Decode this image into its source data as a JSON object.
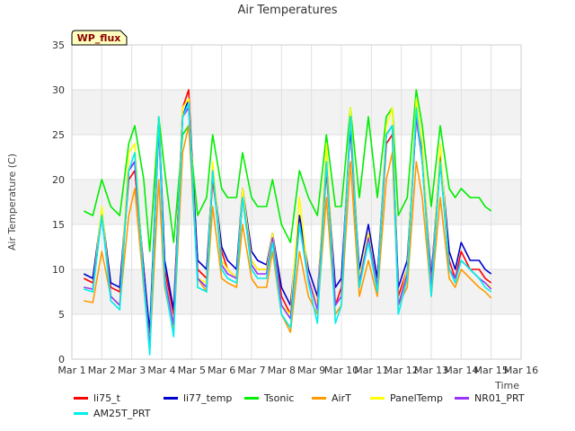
{
  "chart_data": {
    "type": "line",
    "title": "Air Temperatures",
    "xlabel": "Time",
    "ylabel": "Air Temperature (C)",
    "badge": "WP_flux",
    "ylim": [
      0,
      35
    ],
    "yticks": [
      0,
      5,
      10,
      15,
      20,
      25,
      30,
      35
    ],
    "xlim": [
      1,
      16
    ],
    "xticks": [
      "Mar 1",
      "Mar 2",
      "Mar 3",
      "Mar 4",
      "Mar 5",
      "Mar 6",
      "Mar 7",
      "Mar 8",
      "Mar 9",
      "Mar 10",
      "Mar 11",
      "Mar 12",
      "Mar 13",
      "Mar 14",
      "Mar 15",
      "Mar 16"
    ],
    "x": [
      1.4,
      1.7,
      2.0,
      2.3,
      2.6,
      2.9,
      3.1,
      3.4,
      3.6,
      3.9,
      4.1,
      4.4,
      4.7,
      4.9,
      5.2,
      5.5,
      5.7,
      6.0,
      6.2,
      6.5,
      6.7,
      7.0,
      7.2,
      7.5,
      7.7,
      8.0,
      8.3,
      8.6,
      8.9,
      9.2,
      9.5,
      9.8,
      10.0,
      10.3,
      10.6,
      10.9,
      11.2,
      11.5,
      11.7,
      11.9,
      12.2,
      12.5,
      12.7,
      13.0,
      13.3,
      13.6,
      13.8,
      14.0,
      14.3,
      14.6,
      14.8,
      15.0
    ],
    "series": [
      {
        "name": "li75_t",
        "color": "#ff0000",
        "values": [
          9,
          8.5,
          16,
          8,
          7.5,
          20,
          21,
          10,
          2,
          26,
          10,
          5,
          28,
          30,
          10,
          9,
          20,
          12,
          10,
          9,
          18,
          11,
          10,
          10,
          14,
          7,
          5,
          15,
          9,
          6,
          21,
          6,
          8,
          26,
          8,
          14,
          8,
          24,
          25,
          7,
          10,
          27,
          22,
          8,
          22,
          11,
          9,
          12,
          10,
          10,
          9,
          8.5
        ]
      },
      {
        "name": "li77_temp",
        "color": "#0000cc",
        "values": [
          9.5,
          9,
          16.5,
          8.5,
          8,
          21,
          22,
          10,
          3,
          27,
          11,
          5.5,
          27,
          29,
          11,
          10,
          21,
          12.5,
          11,
          10,
          19,
          12,
          11,
          10.5,
          14,
          8,
          6,
          16,
          10,
          7,
          22,
          8,
          9,
          26,
          10,
          15,
          9,
          25,
          26,
          8,
          11,
          27,
          23,
          9,
          23,
          12,
          10,
          13,
          11,
          11,
          10,
          9.5
        ]
      },
      {
        "name": "Tsonic",
        "color": "#00ee00",
        "values": [
          16.5,
          16,
          20,
          17,
          16,
          24,
          26,
          20,
          12,
          27,
          21,
          13,
          25,
          26,
          16,
          18,
          25,
          19,
          18,
          18,
          23,
          18,
          17,
          17,
          20,
          15,
          13,
          21,
          18,
          16,
          25,
          17,
          17,
          28,
          18,
          27,
          18,
          27,
          28,
          16,
          18,
          30,
          26,
          17,
          26,
          19,
          18,
          19,
          18,
          18,
          17,
          16.5
        ]
      },
      {
        "name": "AirT",
        "color": "#ff9900",
        "values": [
          6.5,
          6.3,
          12,
          7,
          6,
          16,
          19,
          8,
          1,
          20,
          8,
          3,
          23,
          26,
          9,
          7.5,
          17,
          9,
          8.5,
          8,
          15,
          9,
          8,
          8,
          12,
          5,
          3,
          12,
          7,
          5,
          18,
          5,
          6,
          22,
          7,
          11,
          7,
          20,
          23,
          6,
          8,
          22,
          18,
          7,
          18,
          9,
          8,
          10,
          9,
          8,
          7.5,
          6.8
        ]
      },
      {
        "name": "PanelTemp",
        "color": "#ffff00",
        "values": [
          8,
          7.8,
          17,
          7,
          6,
          23,
          24,
          9,
          1.5,
          27,
          9,
          4,
          28,
          29,
          9,
          8.5,
          22,
          11,
          10,
          9,
          19,
          11,
          10,
          10,
          14,
          6,
          5,
          18,
          9,
          6,
          24,
          6,
          7,
          28,
          9,
          14,
          8,
          26,
          28,
          6,
          10,
          29,
          24,
          8,
          24,
          10,
          9,
          11,
          10,
          9,
          8.5,
          8
        ]
      },
      {
        "name": "NR01_PRT",
        "color": "#9933ff",
        "values": [
          8,
          7.8,
          16,
          7,
          6,
          21,
          22,
          9,
          1.2,
          26,
          9,
          3.8,
          27,
          28,
          9,
          8,
          21,
          10.5,
          9.5,
          9,
          18,
          10.5,
          9.5,
          9.5,
          13.5,
          6,
          4.5,
          15,
          9,
          5.5,
          22,
          6,
          7,
          27,
          8.5,
          13.5,
          8,
          25,
          26,
          6,
          9.5,
          27,
          22,
          8,
          22,
          10,
          9,
          11,
          10,
          9,
          8.5,
          7.8
        ]
      },
      {
        "name": "AM25T_PRT",
        "color": "#00eeee",
        "values": [
          7.8,
          7.5,
          16,
          6.5,
          5.5,
          21,
          23,
          8.5,
          0.5,
          27,
          8.5,
          2.5,
          27,
          28.5,
          8,
          7.5,
          21,
          10,
          9,
          8.5,
          18,
          10,
          9,
          9,
          13,
          5,
          3.5,
          15,
          8.5,
          4,
          22,
          4,
          6,
          27,
          8,
          13,
          7.5,
          25,
          26,
          5,
          9,
          28,
          22,
          7,
          22,
          10,
          8.5,
          11,
          10,
          9,
          8,
          7.5
        ]
      }
    ],
    "grid": true,
    "legend_position": "bottom"
  }
}
